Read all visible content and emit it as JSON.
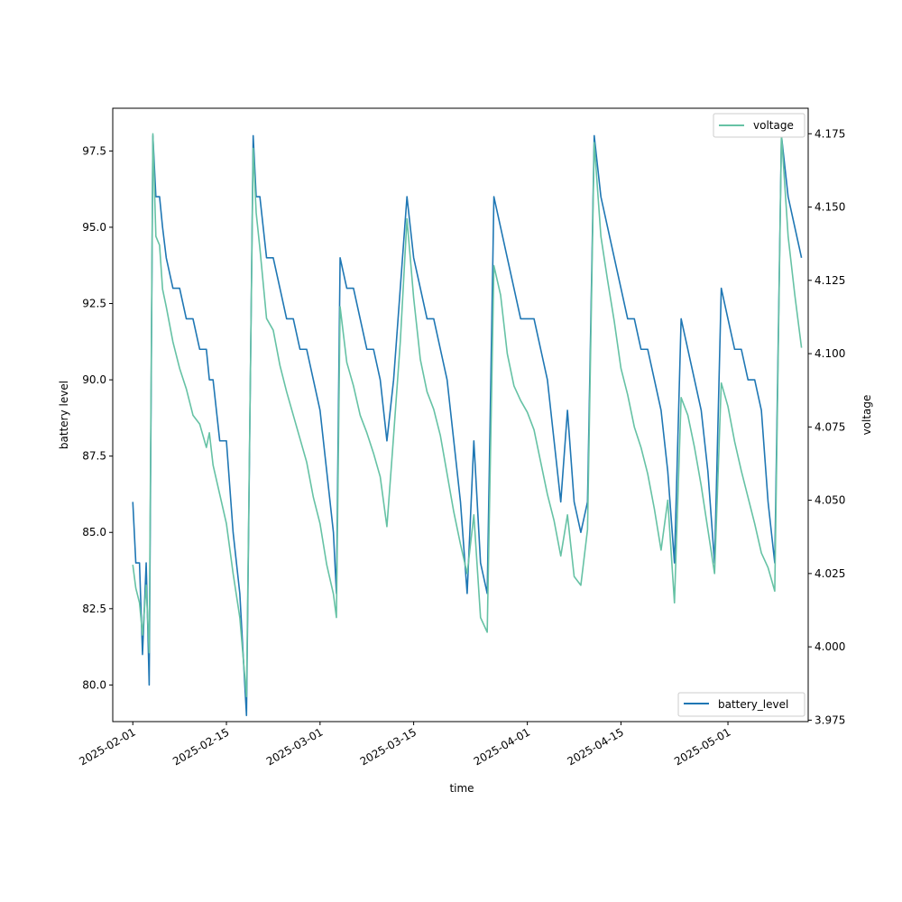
{
  "chart_data": {
    "type": "line",
    "xlabel": "time",
    "ylabel_left": "battery level",
    "ylabel_right": "voltage",
    "xlim": [
      "2025-01-29",
      "2025-05-13"
    ],
    "ylim_left": [
      78.8,
      98.9
    ],
    "ylim_right": [
      3.9745,
      4.1837
    ],
    "x_ticks": [
      "2025-02-01",
      "2025-02-15",
      "2025-03-01",
      "2025-03-15",
      "2025-04-01",
      "2025-04-15",
      "2025-05-01"
    ],
    "y_ticks_left": [
      "80.0",
      "82.5",
      "85.0",
      "87.5",
      "90.0",
      "92.5",
      "95.0",
      "97.5"
    ],
    "y_ticks_right": [
      "3.975",
      "4.000",
      "4.025",
      "4.050",
      "4.075",
      "4.100",
      "4.125",
      "4.150",
      "4.175"
    ],
    "grid": false,
    "colors": {
      "battery_level": "#1f77b4",
      "voltage": "#66c2a5"
    },
    "series": [
      {
        "name": "battery_level",
        "axis": "left",
        "legend_position": "lower right",
        "points": [
          [
            "2025-02-01",
            86
          ],
          [
            "2025-02-01",
            84
          ],
          [
            "2025-02-02",
            84
          ],
          [
            "2025-02-02",
            81
          ],
          [
            "2025-02-03",
            84
          ],
          [
            "2025-02-03",
            80
          ],
          [
            "2025-02-04",
            98
          ],
          [
            "2025-02-04",
            96
          ],
          [
            "2025-02-05",
            96
          ],
          [
            "2025-02-05",
            95
          ],
          [
            "2025-02-06",
            94
          ],
          [
            "2025-02-07",
            93
          ],
          [
            "2025-02-08",
            93
          ],
          [
            "2025-02-09",
            92
          ],
          [
            "2025-02-10",
            92
          ],
          [
            "2025-02-11",
            91
          ],
          [
            "2025-02-12",
            91
          ],
          [
            "2025-02-12",
            90
          ],
          [
            "2025-02-13",
            90
          ],
          [
            "2025-02-14",
            88
          ],
          [
            "2025-02-15",
            88
          ],
          [
            "2025-02-16",
            85
          ],
          [
            "2025-02-17",
            83
          ],
          [
            "2025-02-18",
            79
          ],
          [
            "2025-02-19",
            98
          ],
          [
            "2025-02-19",
            96
          ],
          [
            "2025-02-20",
            96
          ],
          [
            "2025-02-21",
            94
          ],
          [
            "2025-02-22",
            94
          ],
          [
            "2025-02-23",
            93
          ],
          [
            "2025-02-24",
            92
          ],
          [
            "2025-02-25",
            92
          ],
          [
            "2025-02-26",
            91
          ],
          [
            "2025-02-27",
            91
          ],
          [
            "2025-02-28",
            90
          ],
          [
            "2025-03-01",
            89
          ],
          [
            "2025-03-02",
            87
          ],
          [
            "2025-03-03",
            85
          ],
          [
            "2025-03-03",
            83
          ],
          [
            "2025-03-04",
            94
          ],
          [
            "2025-03-05",
            93
          ],
          [
            "2025-03-06",
            93
          ],
          [
            "2025-03-07",
            92
          ],
          [
            "2025-03-08",
            91
          ],
          [
            "2025-03-09",
            91
          ],
          [
            "2025-03-10",
            90
          ],
          [
            "2025-03-11",
            88
          ],
          [
            "2025-03-12",
            90
          ],
          [
            "2025-03-13",
            93
          ],
          [
            "2025-03-14",
            96
          ],
          [
            "2025-03-15",
            94
          ],
          [
            "2025-03-16",
            93
          ],
          [
            "2025-03-17",
            92
          ],
          [
            "2025-03-18",
            92
          ],
          [
            "2025-03-19",
            91
          ],
          [
            "2025-03-20",
            90
          ],
          [
            "2025-03-21",
            88
          ],
          [
            "2025-03-22",
            86
          ],
          [
            "2025-03-23",
            83
          ],
          [
            "2025-03-24",
            88
          ],
          [
            "2025-03-25",
            84
          ],
          [
            "2025-03-26",
            83
          ],
          [
            "2025-03-27",
            96
          ],
          [
            "2025-03-28",
            95
          ],
          [
            "2025-03-29",
            94
          ],
          [
            "2025-03-30",
            93
          ],
          [
            "2025-03-31",
            92
          ],
          [
            "2025-04-01",
            92
          ],
          [
            "2025-04-02",
            92
          ],
          [
            "2025-04-03",
            91
          ],
          [
            "2025-04-04",
            90
          ],
          [
            "2025-04-05",
            88
          ],
          [
            "2025-04-06",
            86
          ],
          [
            "2025-04-07",
            89
          ],
          [
            "2025-04-08",
            86
          ],
          [
            "2025-04-09",
            85
          ],
          [
            "2025-04-10",
            86
          ],
          [
            "2025-04-11",
            98
          ],
          [
            "2025-04-12",
            96
          ],
          [
            "2025-04-13",
            95
          ],
          [
            "2025-04-14",
            94
          ],
          [
            "2025-04-15",
            93
          ],
          [
            "2025-04-16",
            92
          ],
          [
            "2025-04-17",
            92
          ],
          [
            "2025-04-18",
            91
          ],
          [
            "2025-04-19",
            91
          ],
          [
            "2025-04-20",
            90
          ],
          [
            "2025-04-21",
            89
          ],
          [
            "2025-04-22",
            87
          ],
          [
            "2025-04-23",
            84
          ],
          [
            "2025-04-24",
            92
          ],
          [
            "2025-04-25",
            91
          ],
          [
            "2025-04-26",
            90
          ],
          [
            "2025-04-27",
            89
          ],
          [
            "2025-04-28",
            87
          ],
          [
            "2025-04-29",
            84
          ],
          [
            "2025-04-30",
            93
          ],
          [
            "2025-05-01",
            92
          ],
          [
            "2025-05-02",
            91
          ],
          [
            "2025-05-03",
            91
          ],
          [
            "2025-05-04",
            90
          ],
          [
            "2025-05-05",
            90
          ],
          [
            "2025-05-06",
            89
          ],
          [
            "2025-05-07",
            86
          ],
          [
            "2025-05-08",
            84
          ],
          [
            "2025-05-09",
            98
          ],
          [
            "2025-05-10",
            96
          ],
          [
            "2025-05-11",
            95
          ],
          [
            "2025-05-12",
            94
          ]
        ]
      },
      {
        "name": "voltage",
        "axis": "right",
        "legend_position": "upper right",
        "points": [
          [
            "2025-02-01",
            4.028
          ],
          [
            "2025-02-01",
            4.02
          ],
          [
            "2025-02-02",
            4.015
          ],
          [
            "2025-02-02",
            4.004
          ],
          [
            "2025-02-03",
            4.021
          ],
          [
            "2025-02-03",
            3.998
          ],
          [
            "2025-02-04",
            4.175
          ],
          [
            "2025-02-04",
            4.14
          ],
          [
            "2025-02-05",
            4.137
          ],
          [
            "2025-02-05",
            4.122
          ],
          [
            "2025-02-06",
            4.116
          ],
          [
            "2025-02-07",
            4.104
          ],
          [
            "2025-02-08",
            4.095
          ],
          [
            "2025-02-09",
            4.088
          ],
          [
            "2025-02-10",
            4.079
          ],
          [
            "2025-02-11",
            4.076
          ],
          [
            "2025-02-12",
            4.068
          ],
          [
            "2025-02-12",
            4.073
          ],
          [
            "2025-02-13",
            4.062
          ],
          [
            "2025-02-14",
            4.052
          ],
          [
            "2025-02-15",
            4.042
          ],
          [
            "2025-02-16",
            4.025
          ],
          [
            "2025-02-17",
            4.01
          ],
          [
            "2025-02-18",
            3.983
          ],
          [
            "2025-02-19",
            4.17
          ],
          [
            "2025-02-19",
            4.148
          ],
          [
            "2025-02-20",
            4.136
          ],
          [
            "2025-02-21",
            4.112
          ],
          [
            "2025-02-22",
            4.108
          ],
          [
            "2025-02-23",
            4.096
          ],
          [
            "2025-02-24",
            4.087
          ],
          [
            "2025-02-25",
            4.079
          ],
          [
            "2025-02-26",
            4.071
          ],
          [
            "2025-02-27",
            4.063
          ],
          [
            "2025-02-28",
            4.051
          ],
          [
            "2025-03-01",
            4.042
          ],
          [
            "2025-03-02",
            4.028
          ],
          [
            "2025-03-03",
            4.018
          ],
          [
            "2025-03-03",
            4.01
          ],
          [
            "2025-03-04",
            4.116
          ],
          [
            "2025-03-05",
            4.097
          ],
          [
            "2025-03-06",
            4.089
          ],
          [
            "2025-03-07",
            4.079
          ],
          [
            "2025-03-08",
            4.073
          ],
          [
            "2025-03-09",
            4.066
          ],
          [
            "2025-03-10",
            4.058
          ],
          [
            "2025-03-11",
            4.041
          ],
          [
            "2025-03-12",
            4.072
          ],
          [
            "2025-03-13",
            4.104
          ],
          [
            "2025-03-14",
            4.146
          ],
          [
            "2025-03-15",
            4.119
          ],
          [
            "2025-03-16",
            4.098
          ],
          [
            "2025-03-17",
            4.087
          ],
          [
            "2025-03-18",
            4.081
          ],
          [
            "2025-03-19",
            4.072
          ],
          [
            "2025-03-20",
            4.059
          ],
          [
            "2025-03-21",
            4.046
          ],
          [
            "2025-03-22",
            4.035
          ],
          [
            "2025-03-23",
            4.025
          ],
          [
            "2025-03-24",
            4.045
          ],
          [
            "2025-03-25",
            4.01
          ],
          [
            "2025-03-26",
            4.005
          ],
          [
            "2025-03-27",
            4.13
          ],
          [
            "2025-03-28",
            4.12
          ],
          [
            "2025-03-29",
            4.1
          ],
          [
            "2025-03-30",
            4.089
          ],
          [
            "2025-03-31",
            4.084
          ],
          [
            "2025-04-01",
            4.08
          ],
          [
            "2025-04-02",
            4.074
          ],
          [
            "2025-04-03",
            4.063
          ],
          [
            "2025-04-04",
            4.052
          ],
          [
            "2025-04-05",
            4.043
          ],
          [
            "2025-04-06",
            4.031
          ],
          [
            "2025-04-07",
            4.045
          ],
          [
            "2025-04-08",
            4.024
          ],
          [
            "2025-04-09",
            4.021
          ],
          [
            "2025-04-10",
            4.04
          ],
          [
            "2025-04-11",
            4.172
          ],
          [
            "2025-04-12",
            4.14
          ],
          [
            "2025-04-13",
            4.125
          ],
          [
            "2025-04-14",
            4.111
          ],
          [
            "2025-04-15",
            4.095
          ],
          [
            "2025-04-16",
            4.086
          ],
          [
            "2025-04-17",
            4.075
          ],
          [
            "2025-04-18",
            4.068
          ],
          [
            "2025-04-19",
            4.059
          ],
          [
            "2025-04-20",
            4.047
          ],
          [
            "2025-04-21",
            4.033
          ],
          [
            "2025-04-22",
            4.05
          ],
          [
            "2025-04-23",
            4.015
          ],
          [
            "2025-04-24",
            4.085
          ],
          [
            "2025-04-25",
            4.079
          ],
          [
            "2025-04-26",
            4.068
          ],
          [
            "2025-04-27",
            4.055
          ],
          [
            "2025-04-28",
            4.04
          ],
          [
            "2025-04-29",
            4.025
          ],
          [
            "2025-04-30",
            4.09
          ],
          [
            "2025-05-01",
            4.082
          ],
          [
            "2025-05-02",
            4.07
          ],
          [
            "2025-05-03",
            4.06
          ],
          [
            "2025-05-04",
            4.051
          ],
          [
            "2025-05-05",
            4.042
          ],
          [
            "2025-05-06",
            4.032
          ],
          [
            "2025-05-07",
            4.027
          ],
          [
            "2025-05-08",
            4.019
          ],
          [
            "2025-05-09",
            4.175
          ],
          [
            "2025-05-10",
            4.14
          ],
          [
            "2025-05-11",
            4.12
          ],
          [
            "2025-05-12",
            4.102
          ]
        ]
      }
    ]
  }
}
